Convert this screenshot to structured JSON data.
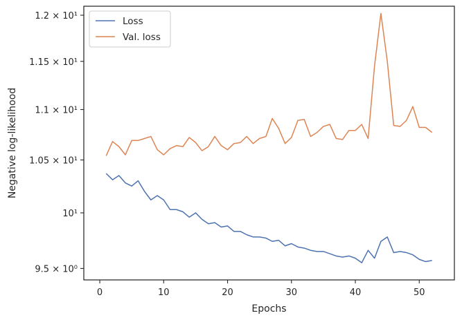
{
  "chart_data": {
    "type": "line",
    "title": "",
    "xlabel": "Epochs",
    "ylabel": "Negative log-likelihood",
    "xlim": [
      -2.5,
      55.5
    ],
    "ylim": [
      9.4,
      12.1
    ],
    "y_scale": "log",
    "grid": false,
    "legend_position": "top-left",
    "x_ticks": [
      0,
      10,
      20,
      30,
      40,
      50
    ],
    "y_ticks": [
      {
        "value": 9.5,
        "label": "9.5 × 10⁰"
      },
      {
        "value": 10,
        "label": "10¹"
      },
      {
        "value": 10.5,
        "label": "1.05 × 10¹"
      },
      {
        "value": 11,
        "label": "1.1 × 10¹"
      },
      {
        "value": 11.5,
        "label": "1.15 × 10¹"
      },
      {
        "value": 12,
        "label": "1.2 × 10¹"
      }
    ],
    "x": [
      1,
      2,
      3,
      4,
      5,
      6,
      7,
      8,
      9,
      10,
      11,
      12,
      13,
      14,
      15,
      16,
      17,
      18,
      19,
      20,
      21,
      22,
      23,
      24,
      25,
      26,
      27,
      28,
      29,
      30,
      31,
      32,
      33,
      34,
      35,
      36,
      37,
      38,
      39,
      40,
      41,
      42,
      43,
      44,
      45,
      46,
      47,
      48,
      49,
      50,
      51,
      52
    ],
    "series": [
      {
        "name": "Loss",
        "color": "#4c72b0",
        "values": [
          10.37,
          10.31,
          10.35,
          10.28,
          10.25,
          10.3,
          10.2,
          10.12,
          10.16,
          10.12,
          10.03,
          10.03,
          10.01,
          9.96,
          10.0,
          9.94,
          9.9,
          9.91,
          9.87,
          9.88,
          9.83,
          9.83,
          9.8,
          9.78,
          9.78,
          9.77,
          9.74,
          9.75,
          9.7,
          9.72,
          9.69,
          9.68,
          9.66,
          9.65,
          9.65,
          9.63,
          9.61,
          9.6,
          9.61,
          9.59,
          9.55,
          9.66,
          9.59,
          9.74,
          9.78,
          9.64,
          9.65,
          9.64,
          9.62,
          9.58,
          9.56,
          9.57
        ]
      },
      {
        "name": "Val. loss",
        "color": "#dd8452",
        "values": [
          10.54,
          10.68,
          10.63,
          10.55,
          10.69,
          10.69,
          10.71,
          10.73,
          10.6,
          10.55,
          10.61,
          10.64,
          10.63,
          10.72,
          10.67,
          10.59,
          10.63,
          10.73,
          10.64,
          10.6,
          10.66,
          10.67,
          10.73,
          10.66,
          10.71,
          10.73,
          10.91,
          10.81,
          10.66,
          10.72,
          10.89,
          10.9,
          10.73,
          10.77,
          10.83,
          10.85,
          10.71,
          10.7,
          10.79,
          10.79,
          10.85,
          10.71,
          11.45,
          12.02,
          11.5,
          10.84,
          10.83,
          10.89,
          11.03,
          10.82,
          10.82,
          10.77
        ]
      }
    ]
  }
}
